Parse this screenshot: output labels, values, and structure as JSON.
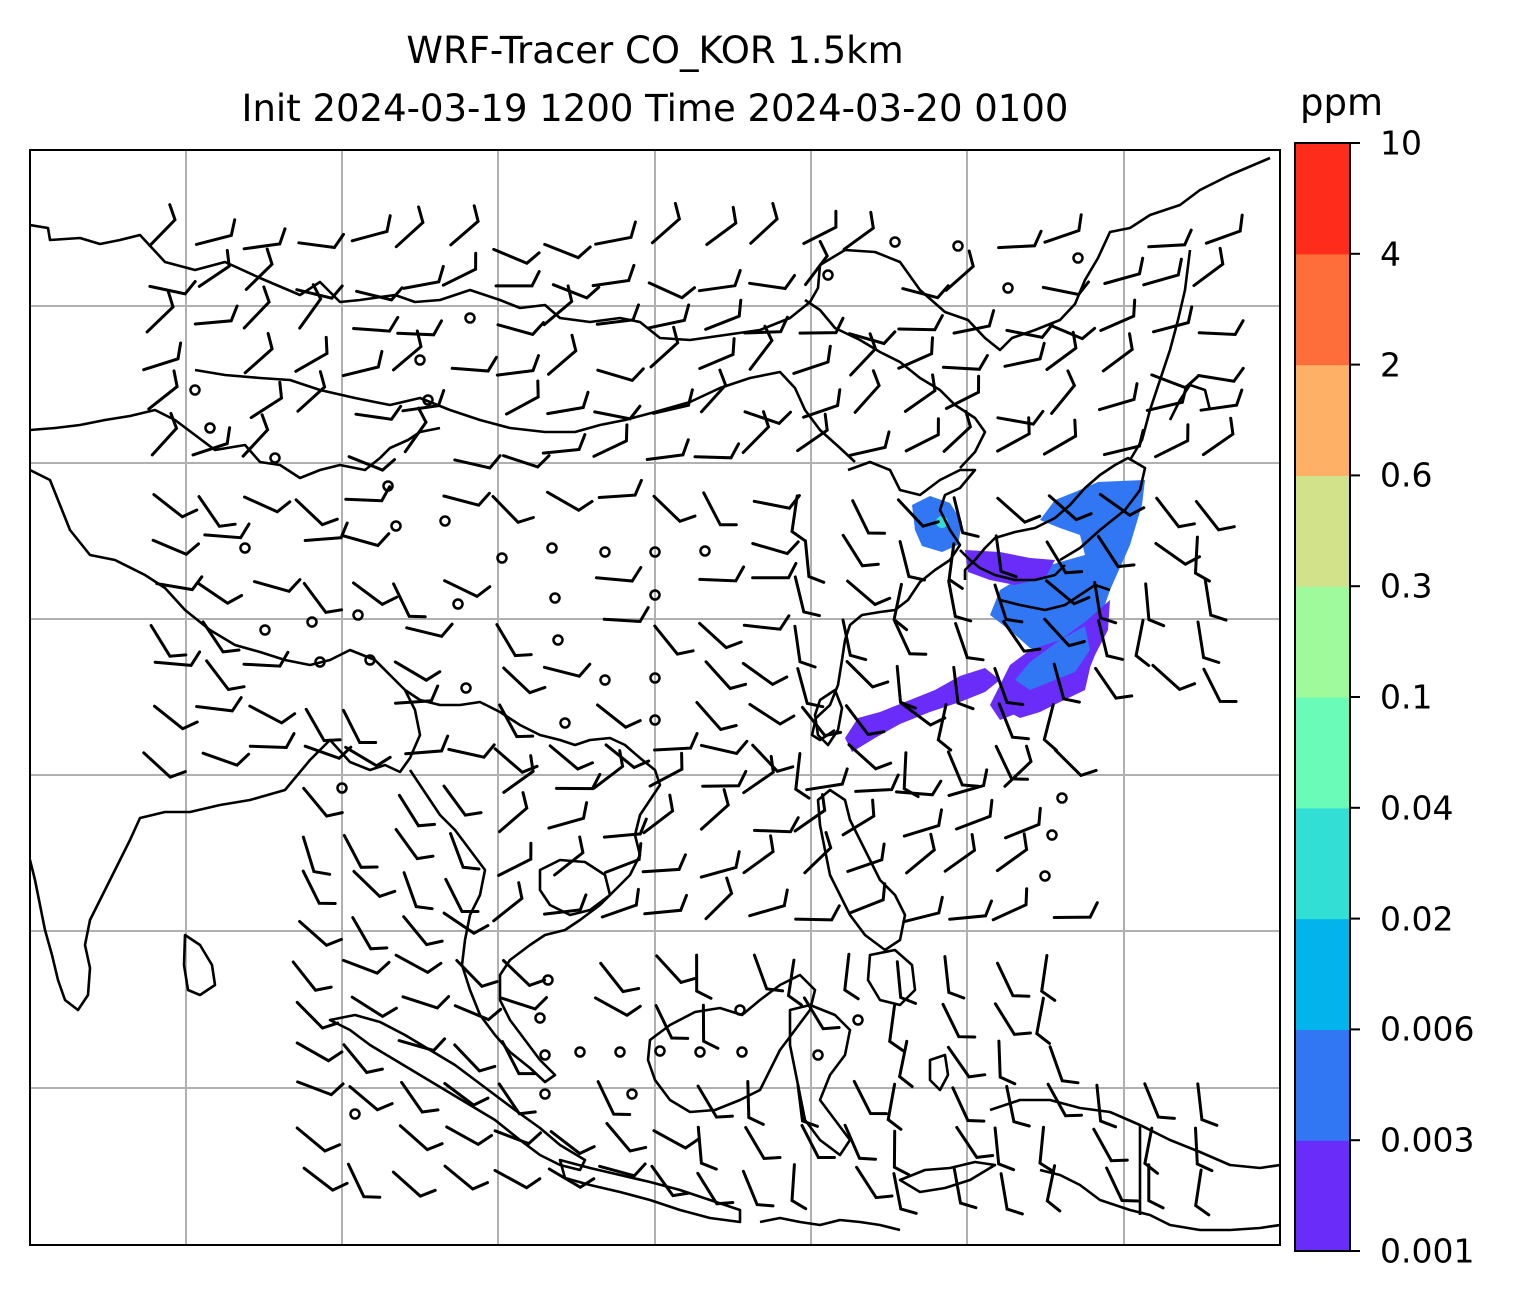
{
  "title_line1": "WRF-Tracer CO_KOR 1.5km",
  "title_line2": "Init 2024-03-19 1200 Time 2024-03-20 0100",
  "colorbar": {
    "unit": "ppm",
    "levels": [
      "0.001",
      "0.003",
      "0.006",
      "0.02",
      "0.04",
      "0.1",
      "0.3",
      "0.6",
      "2",
      "4",
      "10"
    ],
    "colors": [
      "#6a2cf8",
      "#3176f2",
      "#03b3ec",
      "#31dfd4",
      "#6afbb9",
      "#9ffa9c",
      "#d1e28a",
      "#fdb066",
      "#fe6e3a",
      "#fe2c1a"
    ]
  },
  "map": {
    "coastline_color": "#000000",
    "gridline_color": "#b0b0b0",
    "barb_color": "#000000"
  }
}
